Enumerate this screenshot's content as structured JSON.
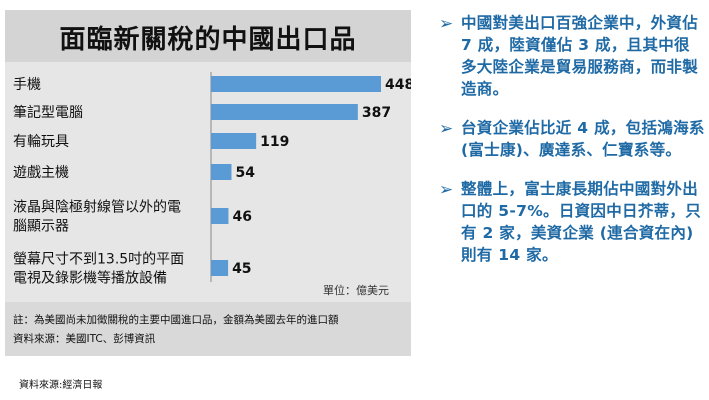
{
  "chart_data": {
    "type": "bar",
    "orientation": "horizontal",
    "title": "面臨新關稅的中國出口品",
    "categories": [
      [
        "手機"
      ],
      [
        "筆記型電腦"
      ],
      [
        "有輪玩具"
      ],
      [
        "遊戲主機"
      ],
      [
        "液晶與陰極射線管以外的電",
        "腦顯示器"
      ],
      [
        "螢幕尺寸不到13.5吋的平面",
        "電視及錄影機等播放設備"
      ]
    ],
    "values": [
      448,
      387,
      119,
      54,
      46,
      45
    ],
    "unit": "單位：億美元",
    "bar_color": "#5b9bd5"
  },
  "notes": {
    "line1": "註：為美國尚未加徵關稅的主要中國進口品，金額為美國去年的進口額",
    "line2": "資料來源：美國ITC、彭博資訊"
  },
  "source": "資料來源:經濟日報",
  "bullets": [
    {
      "marker": "➢",
      "text": "中國對美出口百強企業中，外資佔 7 成，陸資僅佔 3 成，且其中很多大陸企業是貿易服務商，而非製造商。"
    },
    {
      "marker": "➢",
      "text": "台資企業佔比近 4 成，包括鴻海系 (富士康)、廣達系、仁寶系等。"
    },
    {
      "marker": "➢",
      "text": "整體上，富士康長期佔中國對外出口的 5-7%。日資因中日芥蒂，只有 2 家，美資企業 (連合資在內) 則有 14 家。"
    }
  ]
}
